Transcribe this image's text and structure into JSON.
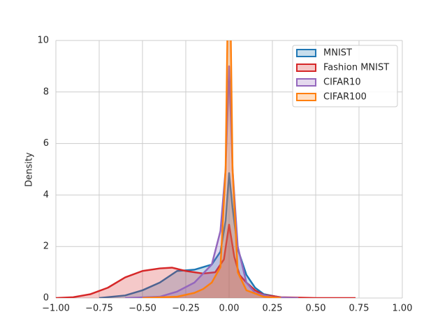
{
  "chart_data": {
    "type": "kde",
    "ylabel": "Density",
    "xlim": [
      -1,
      1
    ],
    "xticks": [
      {
        "value": -1,
        "label": "−1.00"
      },
      {
        "value": -0.75,
        "label": "−0.75"
      },
      {
        "value": -0.5,
        "label": "−0.50"
      },
      {
        "value": -0.25,
        "label": "−0.25"
      },
      {
        "value": 0,
        "label": "0.00"
      },
      {
        "value": 0.25,
        "label": "0.25"
      },
      {
        "value": 0.5,
        "label": "0.50"
      },
      {
        "value": 0.75,
        "label": "0.75"
      },
      {
        "value": 1,
        "label": "1.00"
      }
    ],
    "ylim": [
      0,
      10
    ],
    "yticks": [
      0,
      2,
      4,
      6,
      8,
      10
    ],
    "grid": true,
    "legend": "upper right",
    "series": [
      {
        "name": "MNIST",
        "color": "#1f77b4",
        "x": [
          -0.75,
          -0.6,
          -0.5,
          -0.4,
          -0.3,
          -0.2,
          -0.1,
          -0.05,
          -0.02,
          0,
          0.02,
          0.05,
          0.1,
          0.15,
          0.2,
          0.3,
          0.4
        ],
        "values": [
          0,
          0.1,
          0.3,
          0.6,
          1.05,
          1.1,
          1.3,
          1.8,
          3,
          4.85,
          3.5,
          1.9,
          0.9,
          0.4,
          0.15,
          0.02,
          0
        ]
      },
      {
        "name": "Fashion MNIST",
        "color": "#d62728",
        "x": [
          -1,
          -0.9,
          -0.8,
          -0.7,
          -0.6,
          -0.5,
          -0.4,
          -0.33,
          -0.25,
          -0.15,
          -0.08,
          -0.03,
          0,
          0.03,
          0.06,
          0.1,
          0.15,
          0.2,
          0.3,
          0.5,
          0.73
        ],
        "values": [
          0,
          0.03,
          0.15,
          0.4,
          0.8,
          1.05,
          1.15,
          1.18,
          1.05,
          0.95,
          1.0,
          1.5,
          2.85,
          1.6,
          0.9,
          0.6,
          0.3,
          0.12,
          0.03,
          0,
          0
        ]
      },
      {
        "name": "CIFAR10",
        "color": "#9467bd",
        "x": [
          -0.6,
          -0.4,
          -0.3,
          -0.2,
          -0.1,
          -0.05,
          -0.02,
          0,
          0.02,
          0.05,
          0.1,
          0.15,
          0.25,
          0.4
        ],
        "values": [
          0,
          0.05,
          0.25,
          0.6,
          1.3,
          2.6,
          5,
          9,
          5,
          2,
          0.6,
          0.2,
          0.03,
          0
        ]
      },
      {
        "name": "CIFAR100",
        "color": "#ff7f0e",
        "x": [
          -0.5,
          -0.3,
          -0.2,
          -0.15,
          -0.1,
          -0.05,
          -0.02,
          -0.01,
          0,
          0.01,
          0.02,
          0.05,
          0.1,
          0.2,
          0.3
        ],
        "values": [
          0,
          0.05,
          0.2,
          0.35,
          0.6,
          1.2,
          5,
          10,
          12,
          10,
          5,
          1,
          0.3,
          0.05,
          0
        ]
      }
    ]
  }
}
